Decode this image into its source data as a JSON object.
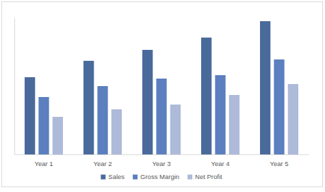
{
  "chart_data": {
    "type": "bar",
    "categories": [
      "Year 1",
      "Year 2",
      "Year 3",
      "Year 4",
      "Year 5"
    ],
    "series": [
      {
        "name": "Sales",
        "color": "#4a6a9c",
        "values": [
          113,
          137,
          153,
          171,
          195
        ]
      },
      {
        "name": "Gross Margin",
        "color": "#5b7fbf",
        "values": [
          84,
          100,
          111,
          116,
          139
        ]
      },
      {
        "name": "Net Profit",
        "color": "#adbad9",
        "values": [
          55,
          66,
          73,
          87,
          103
        ]
      }
    ],
    "ylim": [
      0,
      200
    ],
    "grid": false,
    "legend": "bottom",
    "tick_labels": "x"
  }
}
